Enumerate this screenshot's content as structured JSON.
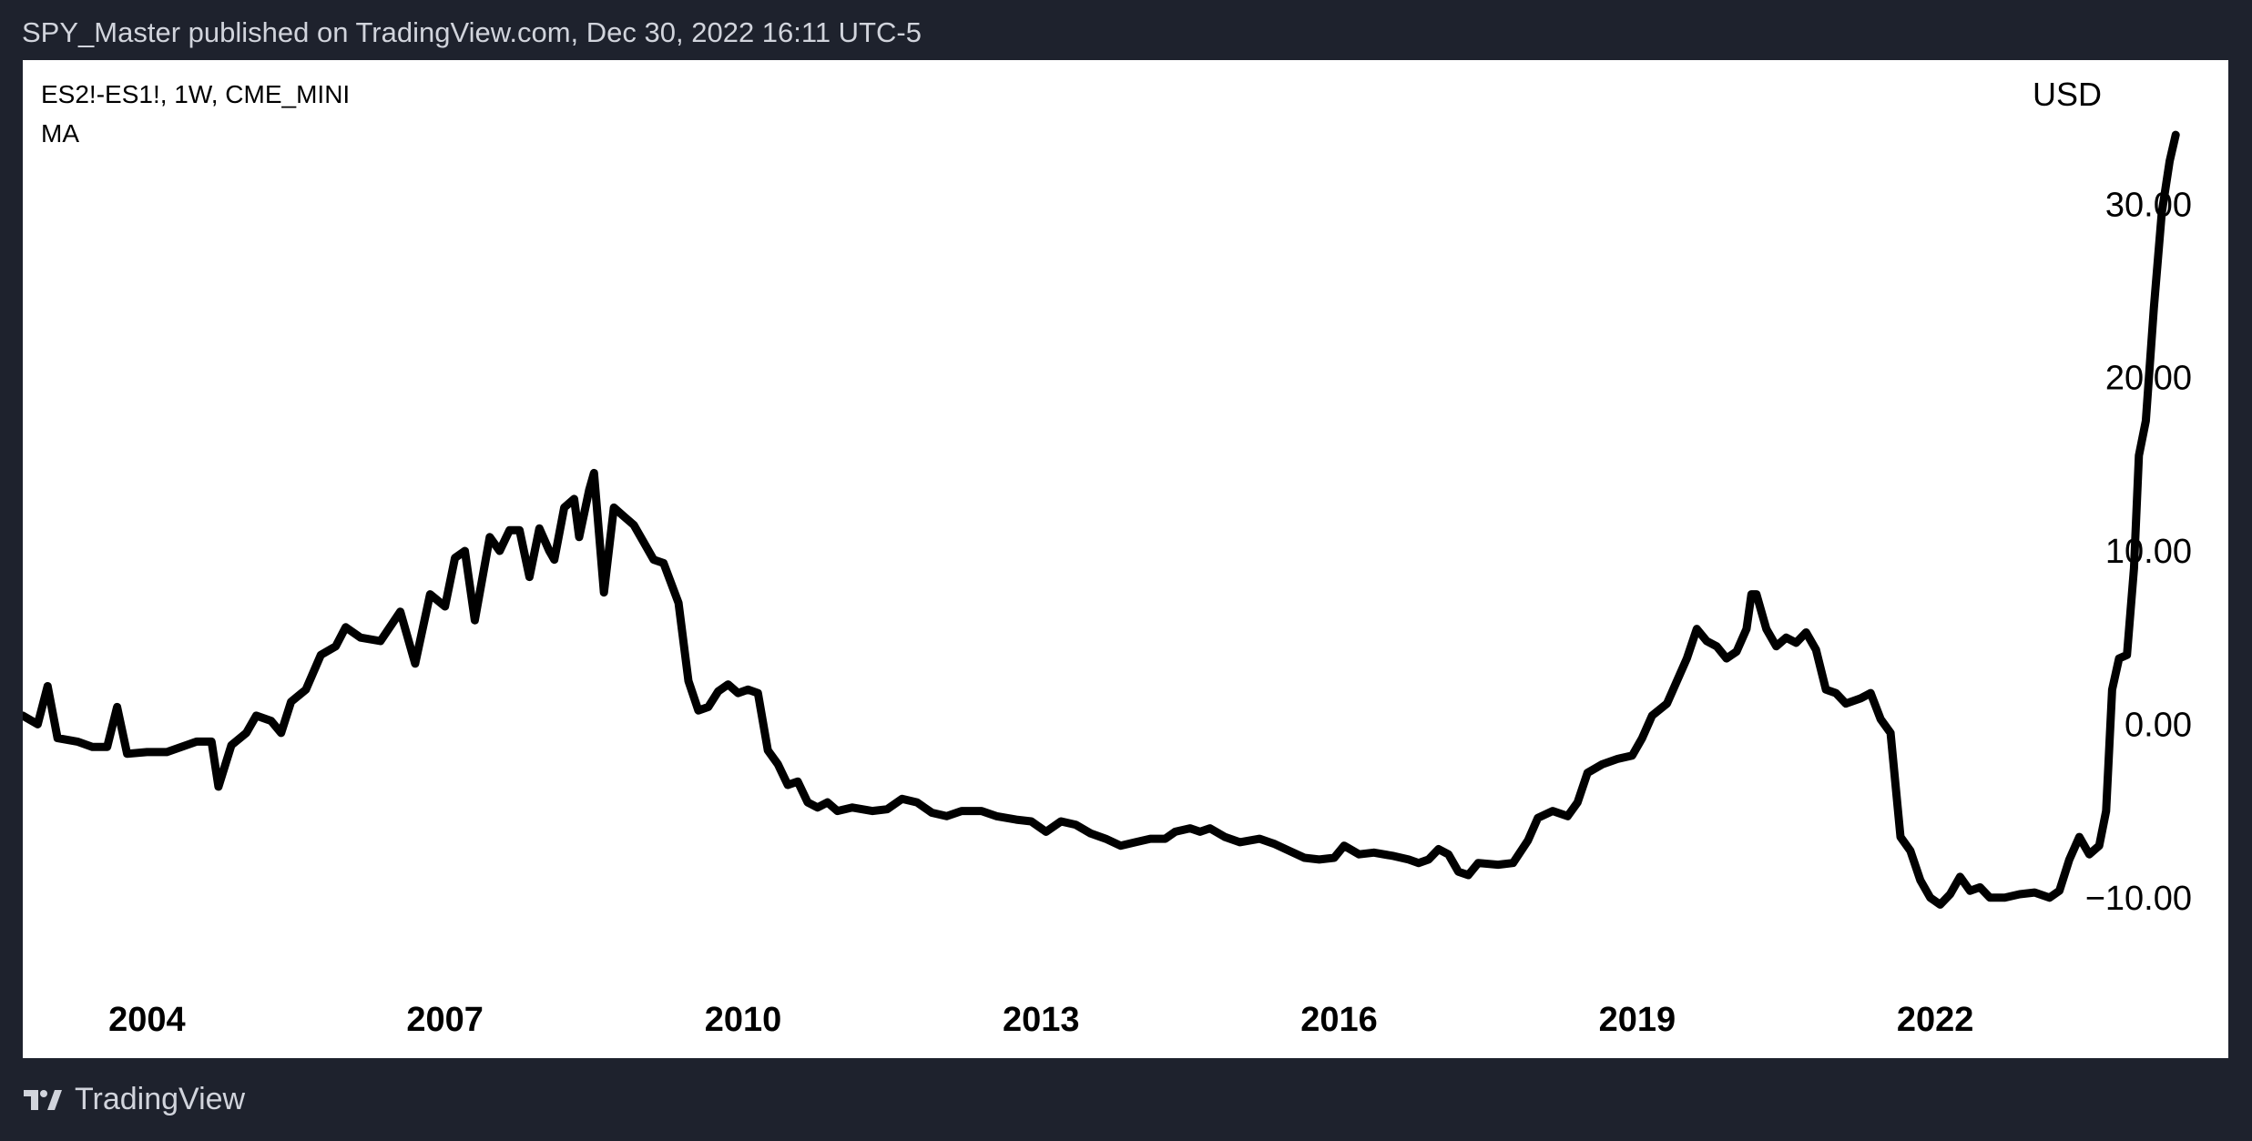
{
  "header": {
    "attribution": "SPY_Master published on TradingView.com, Dec 30, 2022 16:11 UTC-5"
  },
  "footer": {
    "brand": "TradingView",
    "logo_icon": "tradingview-logo-icon"
  },
  "colors": {
    "frame": "#1e222d",
    "panel": "#ffffff",
    "line": "#000000",
    "header_text": "#d1d4dc"
  },
  "chart_data": {
    "type": "line",
    "legend": {
      "symbol": "ES2!-ES1!, 1W, CME_MINI",
      "indicator": "MA"
    },
    "currency": "USD",
    "y_ticks": [
      "30.00",
      "20.00",
      "10.00",
      "0.00",
      "−10.00"
    ],
    "y_tick_values": [
      30,
      20,
      10,
      0,
      -10
    ],
    "x_ticks": [
      "2004",
      "2007",
      "2010",
      "2013",
      "2016",
      "2019",
      "2022"
    ],
    "x_tick_values": [
      2004,
      2007,
      2010,
      2013,
      2016,
      2019,
      2022
    ],
    "xlim": [
      2002.75,
      2024.95
    ],
    "ylim": [
      -16,
      38
    ],
    "grid": false,
    "series": [
      {
        "values": [
          [
            2002.75,
            0.5
          ],
          [
            2002.9,
            0.0
          ],
          [
            2003.0,
            2.2
          ],
          [
            2003.1,
            -0.8
          ],
          [
            2003.3,
            -1.0
          ],
          [
            2003.45,
            -1.3
          ],
          [
            2003.6,
            -1.3
          ],
          [
            2003.7,
            1.0
          ],
          [
            2003.8,
            -1.7
          ],
          [
            2004.0,
            -1.6
          ],
          [
            2004.2,
            -1.6
          ],
          [
            2004.5,
            -1.0
          ],
          [
            2004.65,
            -1.0
          ],
          [
            2004.72,
            -3.6
          ],
          [
            2004.85,
            -1.2
          ],
          [
            2005.0,
            -0.5
          ],
          [
            2005.1,
            0.5
          ],
          [
            2005.25,
            0.2
          ],
          [
            2005.35,
            -0.5
          ],
          [
            2005.45,
            1.3
          ],
          [
            2005.6,
            2.0
          ],
          [
            2005.75,
            4.0
          ],
          [
            2005.9,
            4.5
          ],
          [
            2006.0,
            5.6
          ],
          [
            2006.15,
            5.0
          ],
          [
            2006.35,
            4.8
          ],
          [
            2006.55,
            6.5
          ],
          [
            2006.7,
            3.5
          ],
          [
            2006.85,
            7.5
          ],
          [
            2007.0,
            6.8
          ],
          [
            2007.1,
            9.6
          ],
          [
            2007.2,
            10.0
          ],
          [
            2007.3,
            6.0
          ],
          [
            2007.45,
            10.8
          ],
          [
            2007.55,
            10.0
          ],
          [
            2007.65,
            11.2
          ],
          [
            2007.75,
            11.2
          ],
          [
            2007.85,
            8.5
          ],
          [
            2007.95,
            11.3
          ],
          [
            2008.05,
            10.0
          ],
          [
            2008.1,
            9.5
          ],
          [
            2008.2,
            12.5
          ],
          [
            2008.3,
            13.0
          ],
          [
            2008.35,
            10.8
          ],
          [
            2008.45,
            13.5
          ],
          [
            2008.5,
            14.5
          ],
          [
            2008.6,
            7.6
          ],
          [
            2008.7,
            12.5
          ],
          [
            2008.8,
            12.0
          ],
          [
            2008.9,
            11.5
          ],
          [
            2009.0,
            10.5
          ],
          [
            2009.1,
            9.5
          ],
          [
            2009.2,
            9.3
          ],
          [
            2009.35,
            7.0
          ],
          [
            2009.45,
            2.5
          ],
          [
            2009.55,
            0.8
          ],
          [
            2009.65,
            1.0
          ],
          [
            2009.75,
            1.9
          ],
          [
            2009.85,
            2.3
          ],
          [
            2009.95,
            1.8
          ],
          [
            2010.05,
            2.0
          ],
          [
            2010.15,
            1.8
          ],
          [
            2010.25,
            -1.5
          ],
          [
            2010.35,
            -2.3
          ],
          [
            2010.45,
            -3.5
          ],
          [
            2010.55,
            -3.3
          ],
          [
            2010.65,
            -4.5
          ],
          [
            2010.75,
            -4.8
          ],
          [
            2010.85,
            -4.5
          ],
          [
            2010.95,
            -5.0
          ],
          [
            2011.1,
            -4.8
          ],
          [
            2011.3,
            -5.0
          ],
          [
            2011.45,
            -4.9
          ],
          [
            2011.6,
            -4.3
          ],
          [
            2011.75,
            -4.5
          ],
          [
            2011.9,
            -5.1
          ],
          [
            2012.05,
            -5.3
          ],
          [
            2012.2,
            -5.0
          ],
          [
            2012.4,
            -5.0
          ],
          [
            2012.55,
            -5.3
          ],
          [
            2012.75,
            -5.5
          ],
          [
            2012.9,
            -5.6
          ],
          [
            2013.05,
            -6.2
          ],
          [
            2013.2,
            -5.6
          ],
          [
            2013.35,
            -5.8
          ],
          [
            2013.5,
            -6.3
          ],
          [
            2013.65,
            -6.6
          ],
          [
            2013.8,
            -7.0
          ],
          [
            2013.95,
            -6.8
          ],
          [
            2014.1,
            -6.6
          ],
          [
            2014.25,
            -6.6
          ],
          [
            2014.35,
            -6.2
          ],
          [
            2014.5,
            -6.0
          ],
          [
            2014.6,
            -6.2
          ],
          [
            2014.7,
            -6.0
          ],
          [
            2014.85,
            -6.5
          ],
          [
            2015.0,
            -6.8
          ],
          [
            2015.2,
            -6.6
          ],
          [
            2015.35,
            -6.9
          ],
          [
            2015.5,
            -7.3
          ],
          [
            2015.65,
            -7.7
          ],
          [
            2015.8,
            -7.8
          ],
          [
            2015.95,
            -7.7
          ],
          [
            2016.05,
            -7.0
          ],
          [
            2016.2,
            -7.5
          ],
          [
            2016.35,
            -7.4
          ],
          [
            2016.55,
            -7.6
          ],
          [
            2016.7,
            -7.8
          ],
          [
            2016.8,
            -8.0
          ],
          [
            2016.9,
            -7.8
          ],
          [
            2017.0,
            -7.2
          ],
          [
            2017.1,
            -7.5
          ],
          [
            2017.2,
            -8.5
          ],
          [
            2017.3,
            -8.7
          ],
          [
            2017.4,
            -8.0
          ],
          [
            2017.6,
            -8.1
          ],
          [
            2017.75,
            -8.0
          ],
          [
            2017.9,
            -6.7
          ],
          [
            2018.0,
            -5.4
          ],
          [
            2018.15,
            -5.0
          ],
          [
            2018.3,
            -5.3
          ],
          [
            2018.4,
            -4.5
          ],
          [
            2018.5,
            -2.8
          ],
          [
            2018.65,
            -2.3
          ],
          [
            2018.8,
            -2.0
          ],
          [
            2018.95,
            -1.8
          ],
          [
            2019.05,
            -0.8
          ],
          [
            2019.15,
            0.5
          ],
          [
            2019.3,
            1.2
          ],
          [
            2019.4,
            2.5
          ],
          [
            2019.5,
            3.8
          ],
          [
            2019.6,
            5.5
          ],
          [
            2019.7,
            4.8
          ],
          [
            2019.8,
            4.5
          ],
          [
            2019.9,
            3.8
          ],
          [
            2020.0,
            4.2
          ],
          [
            2020.1,
            5.5
          ],
          [
            2020.15,
            7.5
          ],
          [
            2020.2,
            7.5
          ],
          [
            2020.3,
            5.5
          ],
          [
            2020.4,
            4.5
          ],
          [
            2020.5,
            5.0
          ],
          [
            2020.6,
            4.7
          ],
          [
            2020.7,
            5.3
          ],
          [
            2020.8,
            4.3
          ],
          [
            2020.9,
            2.0
          ],
          [
            2021.0,
            1.8
          ],
          [
            2021.1,
            1.2
          ],
          [
            2021.25,
            1.5
          ],
          [
            2021.35,
            1.8
          ],
          [
            2021.45,
            0.3
          ],
          [
            2021.55,
            -0.5
          ],
          [
            2021.65,
            -6.5
          ],
          [
            2021.75,
            -7.3
          ],
          [
            2021.85,
            -9.0
          ],
          [
            2021.95,
            -10.0
          ],
          [
            2022.05,
            -10.4
          ],
          [
            2022.15,
            -9.8
          ],
          [
            2022.25,
            -8.8
          ],
          [
            2022.35,
            -9.6
          ],
          [
            2022.45,
            -9.4
          ],
          [
            2022.55,
            -10.0
          ],
          [
            2022.7,
            -10.0
          ],
          [
            2022.85,
            -9.8
          ],
          [
            2023.0,
            -9.7
          ],
          [
            2023.15,
            -10.0
          ],
          [
            2023.25,
            -9.6
          ],
          [
            2023.35,
            -7.8
          ],
          [
            2023.45,
            -6.5
          ],
          [
            2023.55,
            -7.5
          ],
          [
            2023.65,
            -7.0
          ],
          [
            2023.72,
            -5.0
          ],
          [
            2023.78,
            2.0
          ],
          [
            2023.85,
            3.8
          ],
          [
            2023.93,
            4.0
          ],
          [
            2024.0,
            9.0
          ],
          [
            2024.05,
            15.5
          ],
          [
            2024.12,
            17.5
          ],
          [
            2024.2,
            24.0
          ],
          [
            2024.28,
            29.5
          ],
          [
            2024.36,
            32.5
          ],
          [
            2024.42,
            34.0
          ]
        ]
      }
    ]
  }
}
